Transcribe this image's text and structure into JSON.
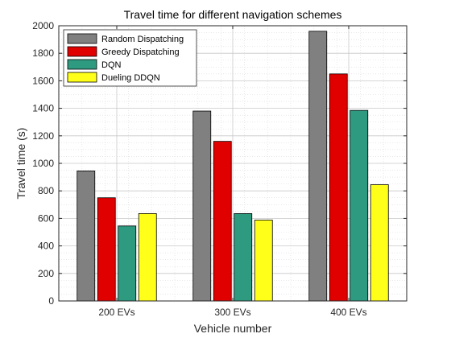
{
  "chart_data": {
    "type": "bar",
    "title": "Travel time for different navigation schemes",
    "xlabel": "Vehicle number",
    "ylabel": "Travel time (s)",
    "categories": [
      "200 EVs",
      "300 EVs",
      "400 EVs"
    ],
    "ylim": [
      0,
      2000
    ],
    "yticks": [
      0,
      200,
      400,
      600,
      800,
      1000,
      1200,
      1400,
      1600,
      1800,
      2000
    ],
    "grid": true,
    "minor_grid": true,
    "legend_position": "top-left",
    "series": [
      {
        "name": "Random Dispatching",
        "color": "#808080",
        "values": [
          945,
          1380,
          1960
        ]
      },
      {
        "name": "Greedy Dispatching",
        "color": "#e00000",
        "values": [
          750,
          1160,
          1650
        ]
      },
      {
        "name": "DQN",
        "color": "#2e9a80",
        "values": [
          545,
          635,
          1385
        ]
      },
      {
        "name": "Dueling DDQN",
        "color": "#ffff1a",
        "values": [
          635,
          588,
          845
        ]
      }
    ]
  }
}
